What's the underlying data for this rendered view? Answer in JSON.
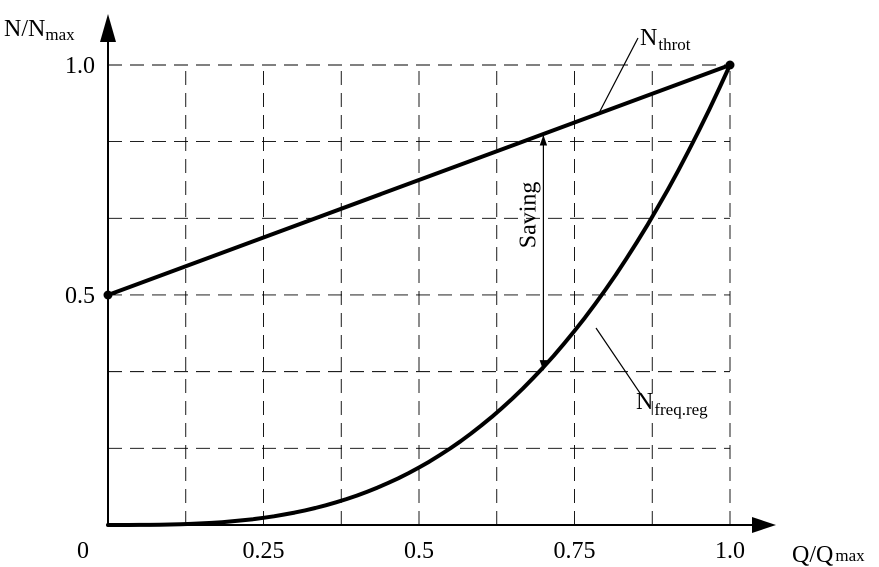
{
  "chart_data": {
    "type": "line",
    "xlabel": {
      "main": "Q/Q",
      "sub": "max"
    },
    "ylabel": {
      "main": "N/N",
      "sub": "max"
    },
    "xlim": [
      0,
      1.0
    ],
    "ylim": [
      0,
      1.0
    ],
    "x_ticks": [
      {
        "value": 0,
        "label": "0"
      },
      {
        "value": 0.25,
        "label": "0.25"
      },
      {
        "value": 0.5,
        "label": "0.5"
      },
      {
        "value": 0.75,
        "label": "0.75"
      },
      {
        "value": 1.0,
        "label": "1.0"
      }
    ],
    "y_ticks": [
      {
        "value": 0.5,
        "label": "0.5"
      },
      {
        "value": 1.0,
        "label": "1.0"
      }
    ],
    "grid": true,
    "grid_step_x": 0.125,
    "grid_step_y": 0.1667,
    "series": [
      {
        "name": "N",
        "name_sub": "throt",
        "x": [
          0,
          1.0
        ],
        "y": [
          0.5,
          1.0
        ],
        "endpoints_marked": true
      },
      {
        "name": "N",
        "name_sub": "freq.reg",
        "x": [
          0,
          0.1,
          0.2,
          0.3,
          0.4,
          0.5,
          0.6,
          0.7,
          0.8,
          0.9,
          1.0
        ],
        "y": [
          0,
          0.001,
          0.008,
          0.027,
          0.064,
          0.125,
          0.216,
          0.343,
          0.512,
          0.729,
          1.0
        ]
      }
    ],
    "annotations": [
      {
        "text": "Saving",
        "type": "double-arrow",
        "x": 0.7,
        "y_from": 0.333,
        "y_to": 0.85
      }
    ]
  }
}
